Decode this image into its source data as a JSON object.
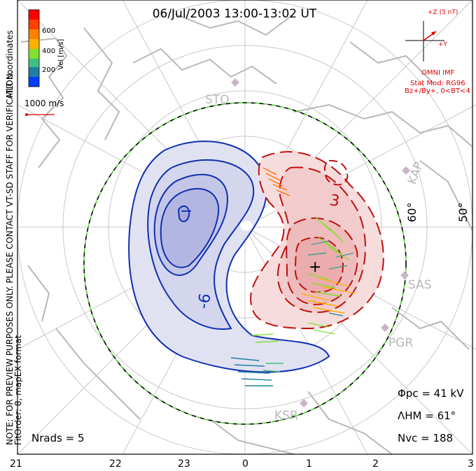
{
  "title": "06/Jul/2003 13:00-13:02 UT",
  "coordinates": "MLT coordinates",
  "colorbar": {
    "label": "Vel [m/s]",
    "ticks": [
      "600",
      "400",
      "200"
    ],
    "colors": [
      "#ff0000",
      "#ff4000",
      "#ff8000",
      "#ffb000",
      "#80e030",
      "#40c080",
      "#2080a0",
      "#0040ff"
    ]
  },
  "vector_scale": "1000 m/s",
  "imf": {
    "axis_z": "+Z (5 nT)",
    "axis_y": "+Y",
    "source": "OMNI IMF",
    "stat_mod": "Stat Mod: RG96",
    "condition": "Bz+/By+, 0<BT<4"
  },
  "notes": {
    "preview": "NOTE: FOR PREVIEW PURPOSES ONLY. PLEASE CONTACT VT-SD STAFF FOR VERIFICATION.",
    "fit_order": "FitOrder: 8, mapEX format"
  },
  "stations": [
    "STO",
    "KAP",
    "SAS",
    "PGR",
    "KSR"
  ],
  "latitude_labels": [
    "60°",
    "50°"
  ],
  "contour_labels": [
    "-6",
    "3"
  ],
  "extrema_marks": [
    "−",
    "+"
  ],
  "mlt_labels": [
    "21",
    "22",
    "23",
    "0",
    "1",
    "2",
    "3"
  ],
  "stats": {
    "phi_pc": "Φpc = 41 kV",
    "lambda_hm": "ΛHM = 61°",
    "n_vc": "Nvc = 188",
    "n_rads": "Nrads = 5"
  },
  "colors": {
    "negative_cell": "#1030b0",
    "positive_cell": "#c01010",
    "grid": "#c8c8c8",
    "coast": "#b8b8b8",
    "imf_red": "#e00000",
    "boundary_green": "#40d020"
  }
}
